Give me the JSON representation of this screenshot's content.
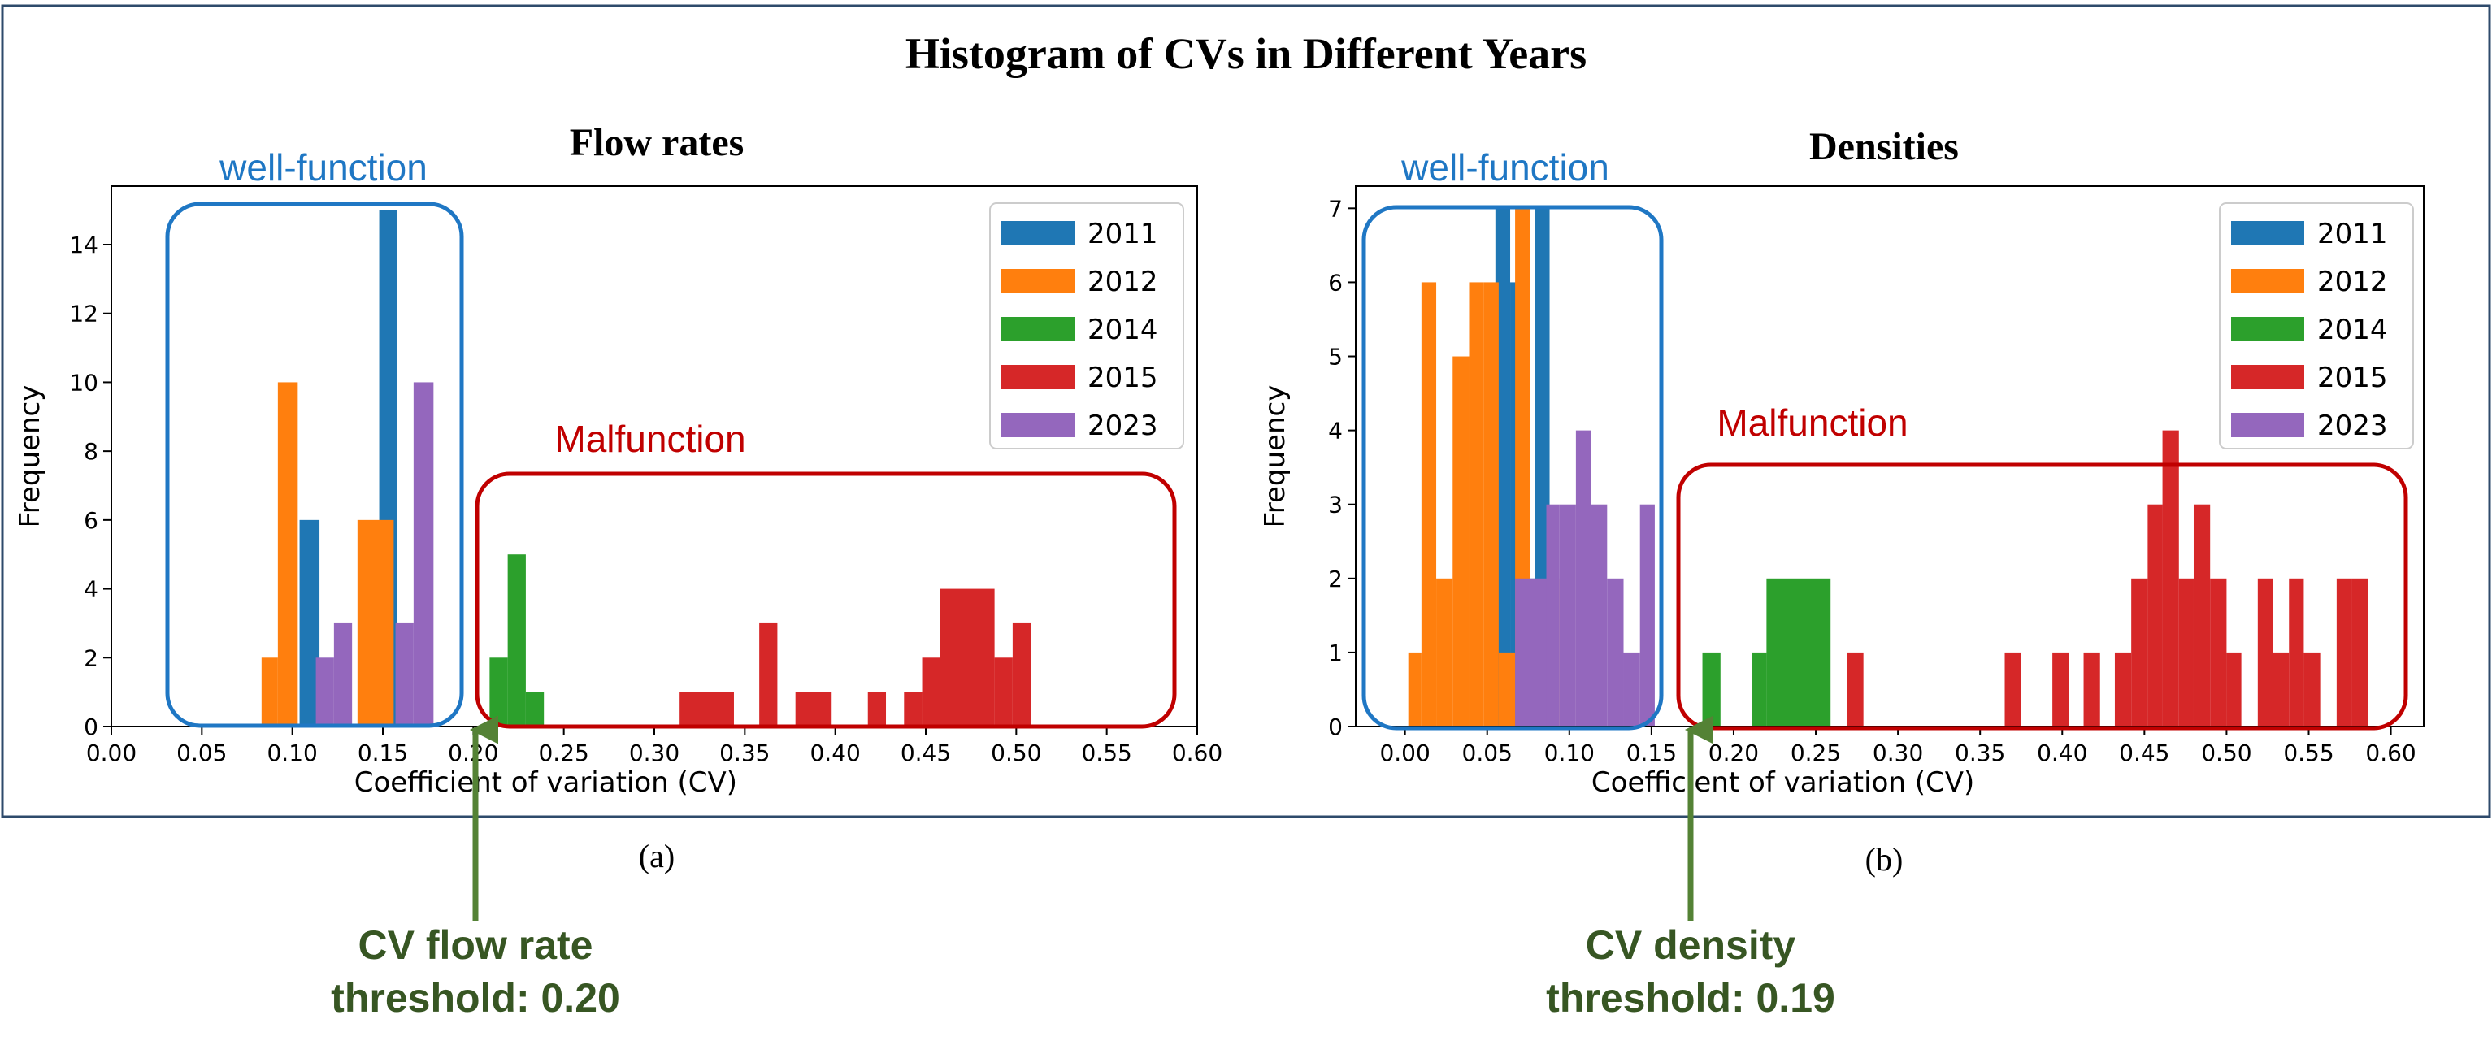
{
  "figure": {
    "title": "Histogram of CVs in Different Years",
    "colors": {
      "frame": "#2e4a6b",
      "well": "#1f77c4",
      "malfunction": "#c00000",
      "threshold": "#548235",
      "threshold_text": "#375623"
    }
  },
  "chart_data": [
    {
      "type": "bar",
      "panel_label": "(a)",
      "title": "Flow rates",
      "xlabel": "Coefficient of variation (CV)",
      "ylabel": "Frequency",
      "xlim": [
        0.0,
        0.6
      ],
      "ylim": [
        0,
        15.7
      ],
      "xticks": [
        "0.00",
        "0.05",
        "0.10",
        "0.15",
        "0.20",
        "0.25",
        "0.30",
        "0.35",
        "0.40",
        "0.45",
        "0.50",
        "0.55",
        "0.60"
      ],
      "yticks": [
        "0",
        "2",
        "4",
        "6",
        "8",
        "10",
        "12",
        "14"
      ],
      "legend": {
        "position": "top-right",
        "entries": [
          "2011",
          "2012",
          "2014",
          "2015",
          "2023"
        ]
      },
      "series": [
        {
          "name": "2011",
          "color": "#1f77b4",
          "bins": [
            [
              0.104,
              0.115,
              6
            ],
            [
              0.148,
              0.158,
              15
            ]
          ]
        },
        {
          "name": "2012",
          "color": "#ff7f0e",
          "bins": [
            [
              0.083,
              0.092,
              2
            ],
            [
              0.092,
              0.103,
              10
            ],
            [
              0.136,
              0.156,
              6
            ]
          ]
        },
        {
          "name": "2014",
          "color": "#2ca02c",
          "bins": [
            [
              0.209,
              0.219,
              2
            ],
            [
              0.219,
              0.229,
              5
            ],
            [
              0.229,
              0.239,
              1
            ]
          ]
        },
        {
          "name": "2015",
          "color": "#d62728",
          "bins": [
            [
              0.314,
              0.344,
              1
            ],
            [
              0.358,
              0.368,
              3
            ],
            [
              0.378,
              0.398,
              1
            ],
            [
              0.418,
              0.428,
              1
            ],
            [
              0.438,
              0.448,
              1
            ],
            [
              0.448,
              0.458,
              2
            ],
            [
              0.458,
              0.488,
              4
            ],
            [
              0.488,
              0.498,
              2
            ],
            [
              0.498,
              0.508,
              3
            ]
          ]
        },
        {
          "name": "2023",
          "color": "#9467bd",
          "bins": [
            [
              0.113,
              0.123,
              2
            ],
            [
              0.123,
              0.133,
              3
            ],
            [
              0.157,
              0.167,
              3
            ],
            [
              0.167,
              0.178,
              10
            ]
          ]
        }
      ],
      "annotations": {
        "well_label": "well-function",
        "malfunction_label": "Malfunction",
        "threshold_text": [
          "CV flow rate",
          "threshold: 0.20"
        ],
        "threshold_value": 0.2
      }
    },
    {
      "type": "bar",
      "panel_label": "(b)",
      "title": "Densities",
      "xlabel": "Coefficient of variation (CV)",
      "ylabel": "Frequency",
      "xlim": [
        -0.03,
        0.62
      ],
      "ylim": [
        0,
        7.3
      ],
      "xticks": [
        "0.00",
        "0.05",
        "0.10",
        "0.15",
        "0.20",
        "0.25",
        "0.30",
        "0.35",
        "0.40",
        "0.45",
        "0.50",
        "0.55",
        "0.60"
      ],
      "yticks": [
        "0",
        "1",
        "2",
        "3",
        "4",
        "5",
        "6",
        "7"
      ],
      "legend": {
        "position": "top-right",
        "entries": [
          "2011",
          "2012",
          "2014",
          "2015",
          "2023"
        ]
      },
      "series": [
        {
          "name": "2011",
          "color": "#1f77b4",
          "bins": [
            [
              0.055,
              0.064,
              7
            ],
            [
              0.064,
              0.07,
              6
            ],
            [
              0.07,
              0.079,
              2
            ],
            [
              0.079,
              0.088,
              7
            ]
          ]
        },
        {
          "name": "2012",
          "color": "#ff7f0e",
          "bins": [
            [
              0.002,
              0.01,
              1
            ],
            [
              0.01,
              0.019,
              6
            ],
            [
              0.019,
              0.029,
              2
            ],
            [
              0.029,
              0.039,
              5
            ],
            [
              0.039,
              0.048,
              6
            ],
            [
              0.048,
              0.057,
              6
            ],
            [
              0.057,
              0.067,
              1
            ],
            [
              0.067,
              0.076,
              7
            ],
            [
              0.086,
              0.094,
              2
            ]
          ]
        },
        {
          "name": "2014",
          "color": "#2ca02c",
          "bins": [
            [
              0.181,
              0.192,
              1
            ],
            [
              0.211,
              0.22,
              1
            ],
            [
              0.22,
              0.259,
              2
            ]
          ]
        },
        {
          "name": "2015",
          "color": "#d62728",
          "bins": [
            [
              0.269,
              0.279,
              1
            ],
            [
              0.365,
              0.375,
              1
            ],
            [
              0.394,
              0.404,
              1
            ],
            [
              0.413,
              0.423,
              1
            ],
            [
              0.432,
              0.442,
              1
            ],
            [
              0.442,
              0.452,
              2
            ],
            [
              0.452,
              0.461,
              3
            ],
            [
              0.461,
              0.471,
              4
            ],
            [
              0.471,
              0.48,
              2
            ],
            [
              0.48,
              0.49,
              3
            ],
            [
              0.49,
              0.5,
              2
            ],
            [
              0.5,
              0.509,
              1
            ],
            [
              0.519,
              0.528,
              2
            ],
            [
              0.528,
              0.538,
              1
            ],
            [
              0.538,
              0.547,
              2
            ],
            [
              0.547,
              0.557,
              1
            ],
            [
              0.567,
              0.576,
              2
            ],
            [
              0.576,
              0.586,
              2
            ]
          ]
        },
        {
          "name": "2023",
          "color": "#9467bd",
          "bins": [
            [
              0.067,
              0.076,
              2
            ],
            [
              0.076,
              0.086,
              2
            ],
            [
              0.086,
              0.094,
              3
            ],
            [
              0.094,
              0.104,
              3
            ],
            [
              0.104,
              0.113,
              4
            ],
            [
              0.113,
              0.123,
              3
            ],
            [
              0.123,
              0.133,
              2
            ],
            [
              0.133,
              0.143,
              1
            ],
            [
              0.143,
              0.152,
              3
            ]
          ]
        }
      ],
      "annotations": {
        "well_label": "well-function",
        "malfunction_label": "Malfunction",
        "threshold_text": [
          "CV density",
          "threshold: 0.19"
        ],
        "threshold_value": 0.19
      }
    }
  ]
}
